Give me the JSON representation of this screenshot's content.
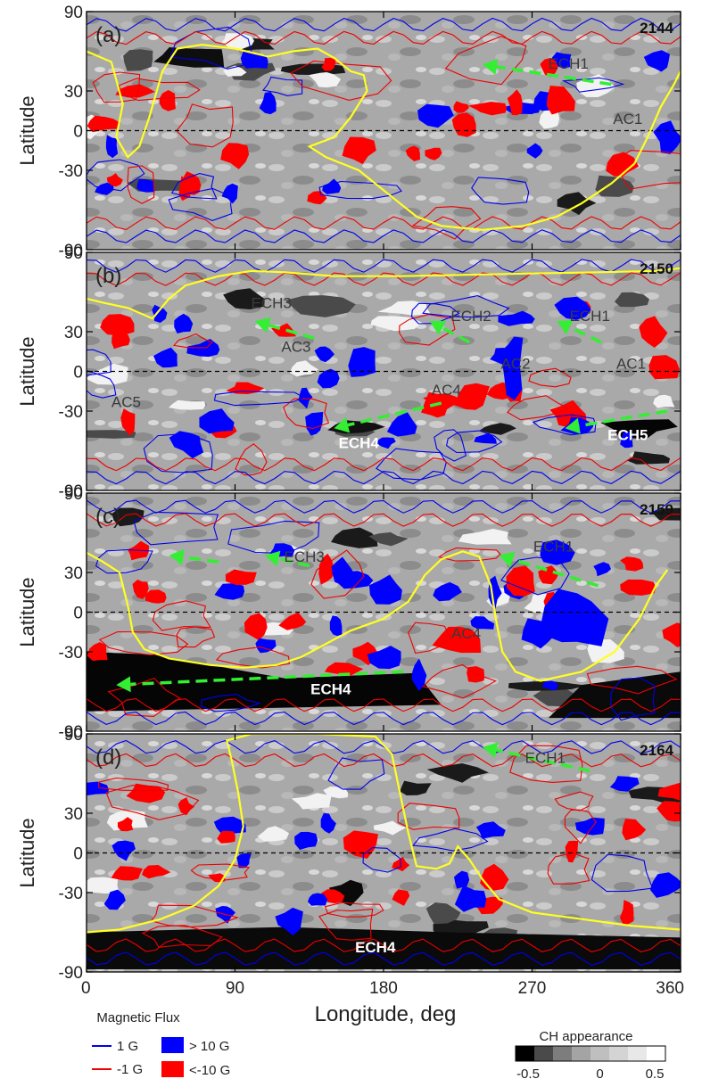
{
  "chart_data": {
    "type": "heatmap",
    "xlabel": "Longitude, deg",
    "ylabel": "Latitude",
    "xlim": [
      0,
      360
    ],
    "ylim": [
      -90,
      90
    ],
    "x_ticks": [
      "0",
      "90",
      "180",
      "270",
      "360"
    ],
    "y_ticks": [
      "90",
      "30",
      "0",
      "-30",
      "-90"
    ],
    "equator_line": "dashed",
    "panels": [
      {
        "label": "(a)",
        "rotation": "2144",
        "annotations": [
          {
            "text": "ECH1",
            "lon": 292,
            "lat": 47,
            "style": "grey"
          },
          {
            "text": "AC1",
            "lon": 328,
            "lat": 5,
            "style": "grey"
          }
        ],
        "arrows": [
          {
            "from": [
              318,
              35
            ],
            "to": [
              240,
              50
            ]
          }
        ],
        "neutral_line": [
          [
            0,
            60
          ],
          [
            15,
            52
          ],
          [
            22,
            20
          ],
          [
            18,
            -5
          ],
          [
            25,
            -20
          ],
          [
            32,
            -12
          ],
          [
            38,
            10
          ],
          [
            46,
            45
          ],
          [
            55,
            62
          ],
          [
            70,
            65
          ],
          [
            90,
            62
          ],
          [
            110,
            56
          ],
          [
            125,
            60
          ],
          [
            140,
            62
          ],
          [
            150,
            55
          ],
          [
            160,
            45
          ],
          [
            168,
            42
          ],
          [
            170,
            30
          ],
          [
            160,
            10
          ],
          [
            150,
            -5
          ],
          [
            135,
            -12
          ],
          [
            145,
            -20
          ],
          [
            165,
            -30
          ],
          [
            185,
            -50
          ],
          [
            200,
            -65
          ],
          [
            215,
            -72
          ],
          [
            240,
            -75
          ],
          [
            265,
            -72
          ],
          [
            285,
            -65
          ],
          [
            300,
            -55
          ],
          [
            318,
            -40
          ],
          [
            332,
            -25
          ],
          [
            340,
            -5
          ],
          [
            348,
            18
          ],
          [
            356,
            35
          ],
          [
            360,
            45
          ]
        ]
      },
      {
        "label": "(b)",
        "rotation": "2150",
        "annotations": [
          {
            "text": "ECH3",
            "lon": 112,
            "lat": 48,
            "style": "grey"
          },
          {
            "text": "ECH2",
            "lon": 233,
            "lat": 38,
            "style": "grey"
          },
          {
            "text": "ECH1",
            "lon": 305,
            "lat": 38,
            "style": "grey"
          },
          {
            "text": "AC3",
            "lon": 127,
            "lat": 15,
            "style": "grey"
          },
          {
            "text": "AC2",
            "lon": 260,
            "lat": 2,
            "style": "grey"
          },
          {
            "text": "AC1",
            "lon": 330,
            "lat": 2,
            "style": "grey"
          },
          {
            "text": "AC4",
            "lon": 218,
            "lat": -18,
            "style": "grey"
          },
          {
            "text": "AC5",
            "lon": 24,
            "lat": -27,
            "style": "grey"
          },
          {
            "text": "ECH4",
            "lon": 165,
            "lat": -58,
            "style": "white"
          },
          {
            "text": "ECH5",
            "lon": 328,
            "lat": -52,
            "style": "white"
          }
        ],
        "arrows": [
          {
            "from": [
              138,
              25
            ],
            "to": [
              102,
              38
            ]
          },
          {
            "from": [
              232,
              22
            ],
            "to": [
              208,
              38
            ]
          },
          {
            "from": [
              312,
              22
            ],
            "to": [
              285,
              38
            ]
          },
          {
            "from": [
              215,
              -24
            ],
            "to": [
              150,
              -43
            ]
          },
          {
            "from": [
              352,
              -30
            ],
            "to": [
              290,
              -43
            ]
          }
        ],
        "neutral_line": [
          [
            0,
            55
          ],
          [
            10,
            52
          ],
          [
            25,
            48
          ],
          [
            40,
            40
          ],
          [
            50,
            55
          ],
          [
            60,
            65
          ],
          [
            80,
            72
          ],
          [
            100,
            76
          ],
          [
            120,
            75
          ],
          [
            150,
            72
          ],
          [
            190,
            72
          ],
          [
            230,
            73
          ],
          [
            270,
            74
          ],
          [
            310,
            75
          ],
          [
            345,
            76
          ],
          [
            360,
            78
          ]
        ]
      },
      {
        "label": "(c)",
        "rotation": "2159",
        "annotations": [
          {
            "text": "ECH3",
            "lon": 132,
            "lat": 38,
            "style": "grey"
          },
          {
            "text": "ECH1",
            "lon": 283,
            "lat": 46,
            "style": "grey"
          },
          {
            "text": "AC4",
            "lon": 230,
            "lat": -20,
            "style": "grey"
          },
          {
            "text": "ECH4",
            "lon": 148,
            "lat": -62,
            "style": "white"
          }
        ],
        "arrows": [
          {
            "from": [
              80,
              38
            ],
            "to": [
              50,
              43
            ]
          },
          {
            "from": [
              135,
              35
            ],
            "to": [
              108,
              43
            ]
          },
          {
            "from": [
              310,
              20
            ],
            "to": [
              250,
              43
            ]
          },
          {
            "from": [
              192,
              -45
            ],
            "to": [
              18,
              -55
            ]
          }
        ],
        "neutral_line": [
          [
            0,
            45
          ],
          [
            10,
            38
          ],
          [
            20,
            30
          ],
          [
            25,
            5
          ],
          [
            28,
            -15
          ],
          [
            35,
            -28
          ],
          [
            50,
            -35
          ],
          [
            75,
            -40
          ],
          [
            95,
            -42
          ],
          [
            115,
            -40
          ],
          [
            130,
            -34
          ],
          [
            145,
            -24
          ],
          [
            160,
            -14
          ],
          [
            180,
            -5
          ],
          [
            195,
            8
          ],
          [
            205,
            28
          ],
          [
            215,
            40
          ],
          [
            228,
            46
          ],
          [
            238,
            42
          ],
          [
            245,
            20
          ],
          [
            248,
            -5
          ],
          [
            252,
            -30
          ],
          [
            260,
            -45
          ],
          [
            275,
            -52
          ],
          [
            300,
            -45
          ],
          [
            320,
            -30
          ],
          [
            335,
            -5
          ],
          [
            345,
            20
          ],
          [
            352,
            32
          ]
        ]
      },
      {
        "label": "(d)",
        "rotation": "2164",
        "annotations": [
          {
            "text": "ECH1",
            "lon": 278,
            "lat": 68,
            "style": "grey"
          },
          {
            "text": "ECH4",
            "lon": 175,
            "lat": -75,
            "style": "white"
          }
        ],
        "arrows": [
          {
            "from": [
              305,
              62
            ],
            "to": [
              240,
              80
            ]
          }
        ],
        "neutral_line": [
          [
            0,
            -60
          ],
          [
            20,
            -58
          ],
          [
            45,
            -50
          ],
          [
            65,
            -40
          ],
          [
            80,
            -25
          ],
          [
            90,
            -5
          ],
          [
            95,
            20
          ],
          [
            92,
            45
          ],
          [
            88,
            70
          ],
          [
            85,
            85
          ],
          [
            100,
            90
          ],
          [
            140,
            90
          ],
          [
            175,
            88
          ],
          [
            185,
            75
          ],
          [
            190,
            45
          ],
          [
            195,
            15
          ],
          [
            200,
            -10
          ],
          [
            212,
            -12
          ],
          [
            220,
            -8
          ],
          [
            225,
            5
          ],
          [
            232,
            -5
          ],
          [
            240,
            -20
          ],
          [
            250,
            -35
          ],
          [
            270,
            -45
          ],
          [
            300,
            -50
          ],
          [
            330,
            -55
          ],
          [
            360,
            -58
          ]
        ]
      }
    ],
    "legend_flux": {
      "title": "Magnetic Flux",
      "entries": [
        {
          "label": "1 G",
          "kind": "contour",
          "color": "#0000ee"
        },
        {
          "label": "> 10 G",
          "kind": "fill",
          "color": "#0000ff"
        },
        {
          "label": "-1 G",
          "kind": "contour",
          "color": "#ee0000"
        },
        {
          "label": "<-10 G",
          "kind": "fill",
          "color": "#ff0000"
        }
      ]
    },
    "legend_ch": {
      "title": "CH appearance",
      "values": [
        -0.5,
        -0.375,
        -0.25,
        -0.125,
        0,
        0.125,
        0.25,
        0.375
      ],
      "colors": [
        "#000000",
        "#4a4a4a",
        "#7d7d7d",
        "#a4a4a4",
        "#bfbfbf",
        "#d4d4d4",
        "#e8e8e8",
        "#ffffff"
      ],
      "tick_labels": [
        "-0.5",
        "0",
        "0.5"
      ],
      "tick_values": [
        -0.5,
        0,
        0.5
      ]
    }
  },
  "colors": {
    "neutral_line": "#ffff22",
    "arrow": "#33ee33",
    "positive": "#0000ff",
    "negative": "#ff0000",
    "background": "#a9a9a9"
  }
}
